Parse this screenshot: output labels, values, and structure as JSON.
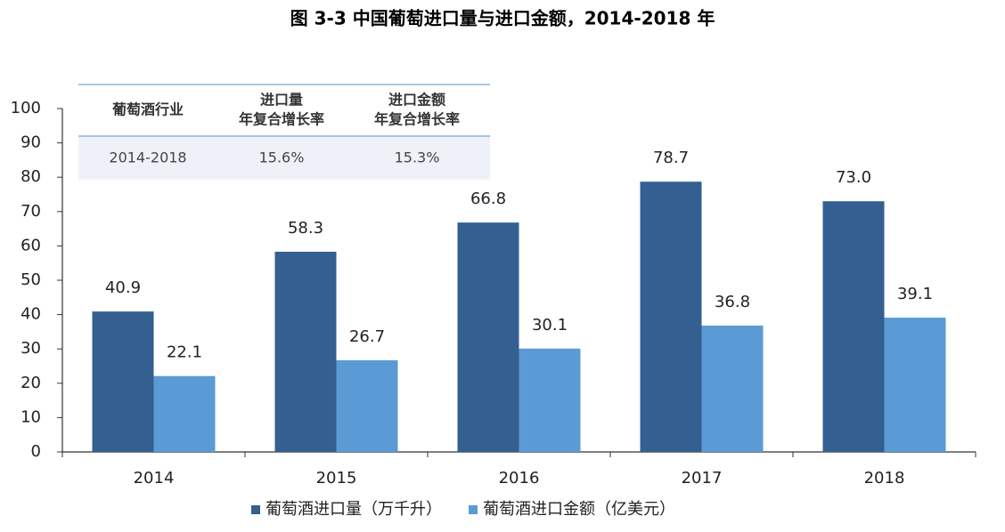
{
  "chart_data": {
    "type": "bar",
    "title": "图 3-3 中国葡萄进口量与进口金额，2014-2018 年",
    "categories": [
      "2014",
      "2015",
      "2016",
      "2017",
      "2018"
    ],
    "series": [
      {
        "name": "葡萄酒进口量（万千升）",
        "color": "#345f91",
        "values": [
          40.9,
          58.3,
          66.8,
          78.7,
          73.0
        ],
        "value_labels": [
          "40.9",
          "58.3",
          "66.8",
          "78.7",
          "73.0"
        ]
      },
      {
        "name": "葡萄酒进口金额（亿美元）",
        "color": "#5b9bd5",
        "values": [
          22.1,
          26.7,
          30.1,
          36.8,
          39.1
        ],
        "value_labels": [
          "22.1",
          "26.7",
          "30.1",
          "36.8",
          "39.1"
        ]
      }
    ],
    "ylim": [
      0,
      100
    ],
    "yticks": [
      0,
      10,
      20,
      30,
      40,
      50,
      60,
      70,
      80,
      90,
      100
    ],
    "grid": false,
    "legend": "bottom"
  },
  "table": {
    "header": [
      [
        "葡萄酒行业"
      ],
      [
        "进口量",
        "年复合增长率"
      ],
      [
        "进口金额",
        "年复合增长率"
      ]
    ],
    "rows": [
      [
        "2014-2018",
        "15.6%",
        "15.3%"
      ]
    ]
  }
}
